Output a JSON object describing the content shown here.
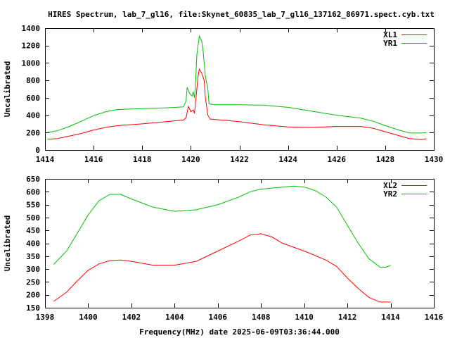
{
  "title": "HIRES Spectrum, lab_7_gl16, file:Skynet_60835_lab_7_gl16_137162_86971.spect.cyb.txt",
  "chart_data": [
    {
      "type": "line",
      "ylabel": "Uncalibrated",
      "xlabel": "",
      "xlim": [
        1414,
        1430
      ],
      "ylim": [
        0,
        1400
      ],
      "xticks": [
        1414,
        1416,
        1418,
        1420,
        1422,
        1424,
        1426,
        1428,
        1430
      ],
      "yticks": [
        0,
        200,
        400,
        600,
        800,
        1000,
        1200,
        1400
      ],
      "grid": false,
      "legend": "top-right",
      "series": [
        {
          "name": "XL1",
          "color": "#ff0000",
          "x": [
            1414.1,
            1414.5,
            1415,
            1415.5,
            1416,
            1416.5,
            1417,
            1418,
            1419,
            1419.7,
            1419.8,
            1419.9,
            1420,
            1420.1,
            1420.15,
            1420.2,
            1420.3,
            1420.35,
            1420.45,
            1420.55,
            1420.6,
            1420.7,
            1420.8,
            1421,
            1422,
            1423,
            1424,
            1425,
            1426,
            1427,
            1427.5,
            1428,
            1428.5,
            1429,
            1429.5,
            1429.7
          ],
          "y": [
            125,
            130,
            160,
            190,
            230,
            260,
            280,
            300,
            325,
            345,
            370,
            500,
            440,
            460,
            420,
            560,
            850,
            930,
            880,
            800,
            600,
            400,
            355,
            350,
            325,
            290,
            265,
            260,
            270,
            270,
            250,
            210,
            170,
            130,
            120,
            130
          ]
        },
        {
          "name": "YR1",
          "color": "#00c000",
          "x": [
            1414.1,
            1414.5,
            1415,
            1415.5,
            1416,
            1416.5,
            1417,
            1418,
            1419,
            1419.7,
            1419.8,
            1419.85,
            1419.95,
            1420.05,
            1420.1,
            1420.15,
            1420.2,
            1420.25,
            1420.35,
            1420.45,
            1420.5,
            1420.6,
            1420.7,
            1420.75,
            1421,
            1422,
            1423,
            1424,
            1425,
            1426,
            1427,
            1427.5,
            1428,
            1428.5,
            1429,
            1429.5,
            1429.7
          ],
          "y": [
            200,
            220,
            270,
            330,
            395,
            440,
            465,
            475,
            485,
            495,
            560,
            720,
            650,
            620,
            670,
            600,
            800,
            1100,
            1310,
            1250,
            1150,
            850,
            700,
            530,
            520,
            520,
            515,
            490,
            445,
            400,
            365,
            330,
            280,
            235,
            195,
            195,
            200
          ]
        }
      ]
    },
    {
      "type": "line",
      "ylabel": "Uncalibrated",
      "xlabel": "Frequency(MHz) date 2025-06-09T03:36:44.000",
      "xlim": [
        1398,
        1416
      ],
      "ylim": [
        150,
        650
      ],
      "xticks": [
        1398,
        1400,
        1402,
        1404,
        1406,
        1408,
        1410,
        1412,
        1414,
        1416
      ],
      "yticks": [
        150,
        200,
        250,
        300,
        350,
        400,
        450,
        500,
        550,
        600,
        650
      ],
      "grid": false,
      "legend": "top-right",
      "series": [
        {
          "name": "XL2",
          "color": "#ff0000",
          "x": [
            1398.4,
            1399,
            1399.5,
            1400,
            1400.5,
            1401,
            1401.5,
            1402,
            1403,
            1404,
            1405,
            1406,
            1407,
            1407.5,
            1408,
            1408.5,
            1409,
            1410,
            1411,
            1411.5,
            1412,
            1412.5,
            1413,
            1413.5,
            1414
          ],
          "y": [
            175,
            210,
            255,
            295,
            320,
            333,
            335,
            330,
            315,
            315,
            330,
            370,
            410,
            432,
            437,
            425,
            400,
            370,
            335,
            310,
            265,
            225,
            190,
            172,
            172
          ]
        },
        {
          "name": "YR2",
          "color": "#00c000",
          "x": [
            1398.4,
            1399,
            1399.5,
            1400,
            1400.5,
            1401,
            1401.5,
            1402,
            1403,
            1404,
            1405,
            1406,
            1407,
            1407.5,
            1408,
            1409,
            1409.5,
            1410,
            1410.5,
            1411,
            1411.5,
            1412,
            1412.5,
            1413,
            1413.5,
            1413.8,
            1414
          ],
          "y": [
            318,
            370,
            440,
            510,
            565,
            590,
            590,
            572,
            540,
            524,
            530,
            550,
            580,
            600,
            610,
            618,
            622,
            618,
            605,
            580,
            540,
            470,
            400,
            340,
            308,
            307,
            315
          ]
        }
      ]
    }
  ]
}
